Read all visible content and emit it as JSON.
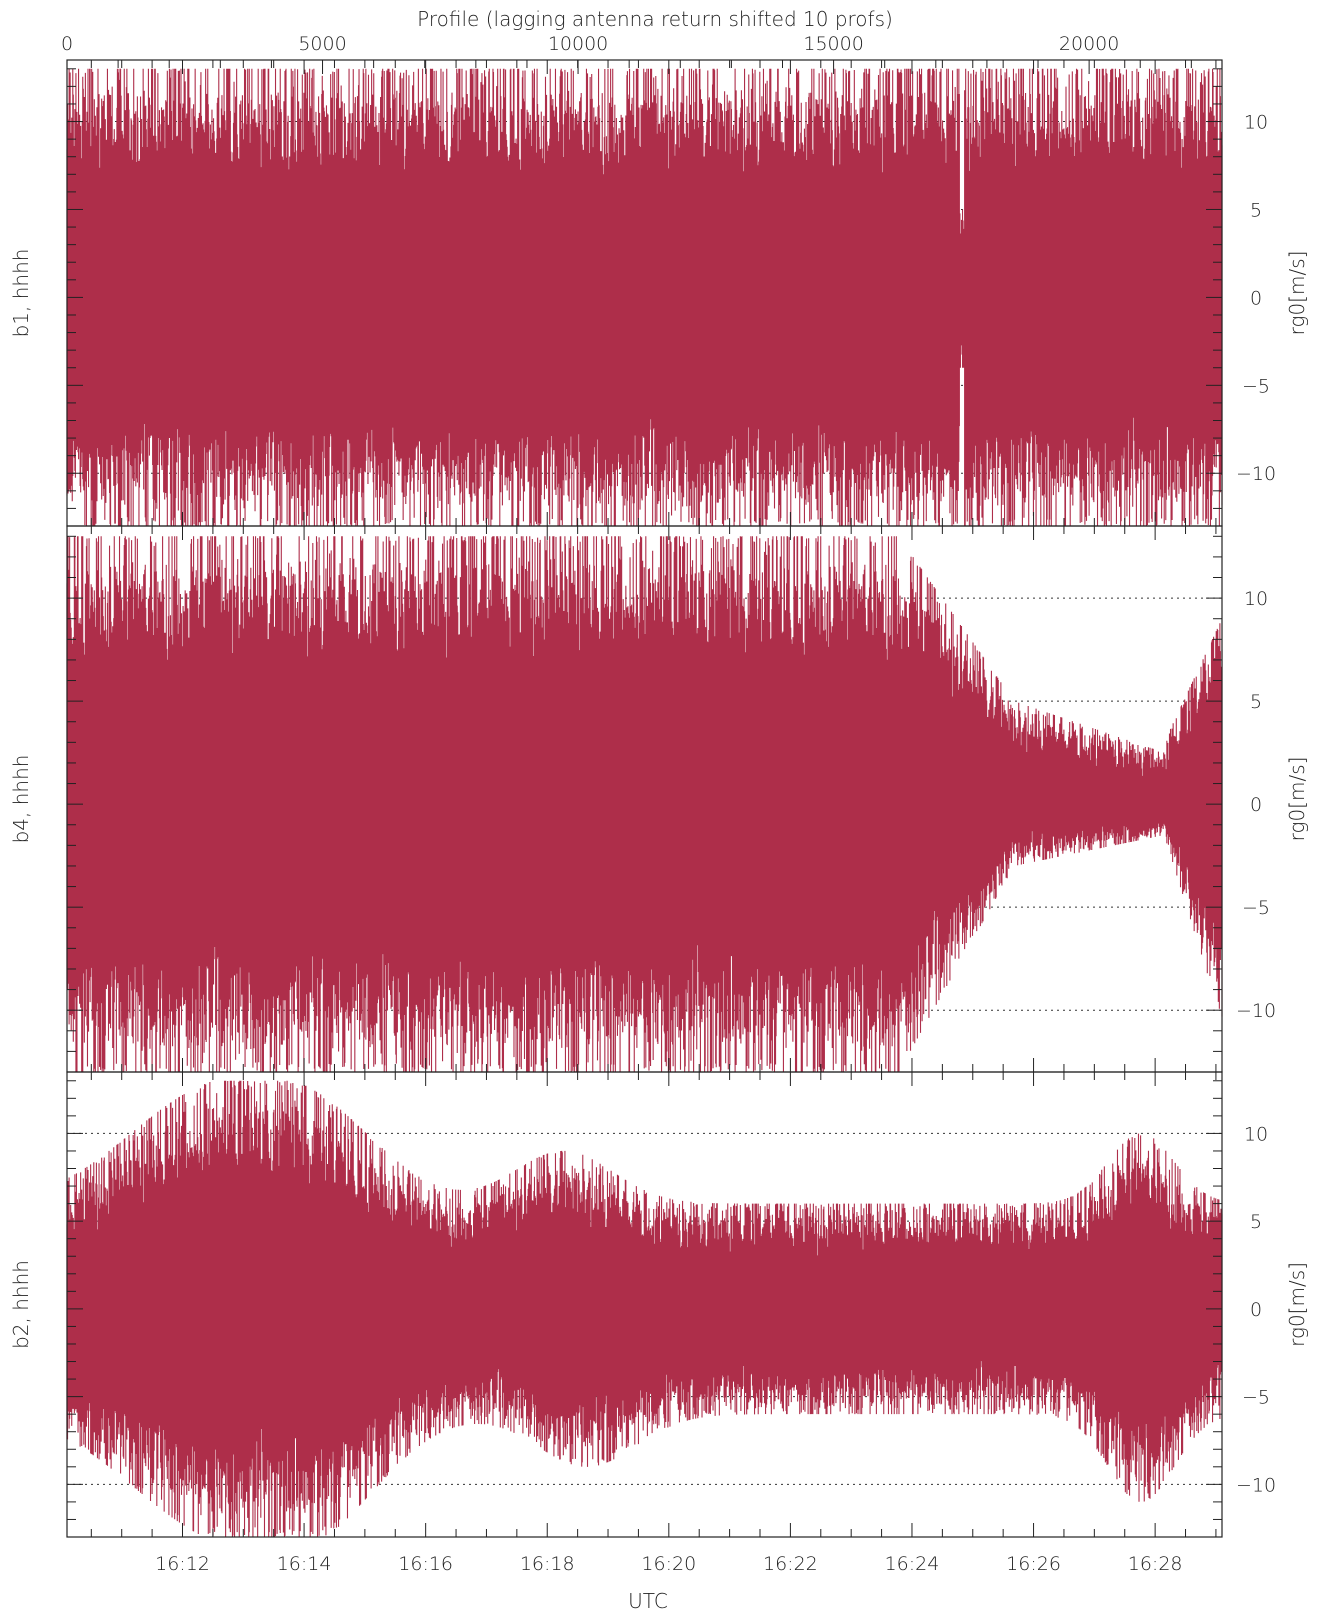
{
  "chart_data": [
    {
      "type": "line",
      "panel": "b1",
      "ylabel_left": "b1, hhhh",
      "ylabel_right": "rg0[m/s]",
      "top_axis_title": "Profile (lagging antenna return shifted 10 profs)",
      "top_ticks": [
        0,
        5000,
        10000,
        15000,
        20000
      ],
      "top_range": [
        0,
        22600
      ],
      "ylim": [
        -13,
        13.5
      ],
      "yticks": [
        10,
        5,
        0,
        -5,
        -10
      ],
      "grid": "dotted-horizontal",
      "series_color": "#ae2e4a",
      "description_points": {
        "envelope_upper": 13,
        "envelope_lower": -13,
        "dropout_at_profile": 17500
      }
    },
    {
      "type": "line",
      "panel": "b4",
      "ylabel_left": "b4, hhhh",
      "ylabel_right": "rg0[m/s]",
      "ylim": [
        -13,
        13.5
      ],
      "yticks": [
        10,
        5,
        0,
        -5,
        -10
      ],
      "grid": "dotted-horizontal",
      "series_color": "#ae2e4a",
      "description_points": {
        "envelope_upper_early": 13,
        "envelope_lower_early": -13,
        "envelope_upper_late": 3,
        "envelope_lower_late": -1.5
      }
    },
    {
      "type": "line",
      "panel": "b2",
      "ylabel_left": "b2, hhhh",
      "ylabel_right": "rg0[m/s]",
      "xlabel": "UTC",
      "xticks": [
        "16:12",
        "16:14",
        "16:16",
        "16:18",
        "16:20",
        "16:22",
        "16:24",
        "16:26",
        "16:28"
      ],
      "ylim": [
        -13,
        13.5
      ],
      "yticks": [
        10,
        5,
        0,
        -5,
        -10
      ],
      "grid": "dotted-horizontal",
      "series_color": "#ae2e4a"
    }
  ]
}
